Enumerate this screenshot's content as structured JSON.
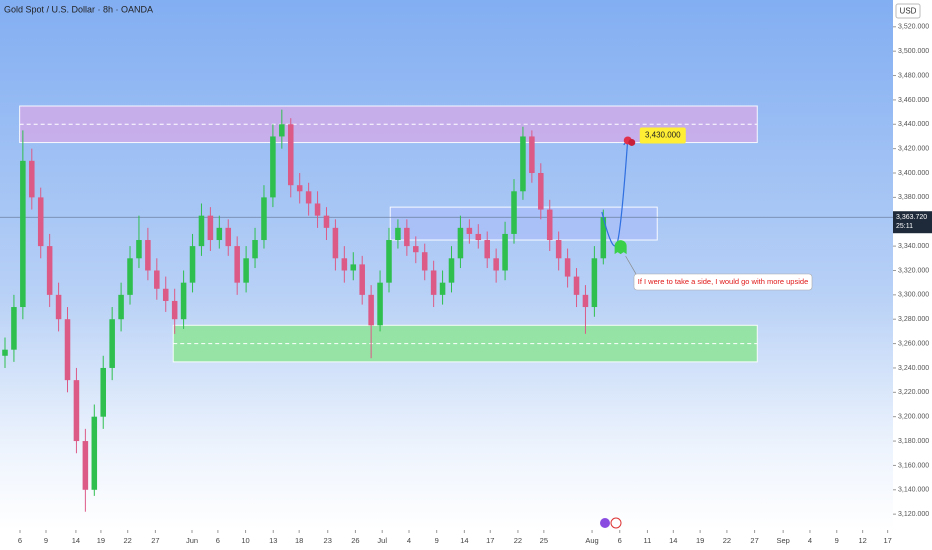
{
  "chart_data": {
    "type": "candlestick",
    "title": "Gold Spot / U.S. Dollar · 8h · OANDA",
    "currency": "USD",
    "up_color": "#2fbf4f",
    "down_color": "#dc5a86",
    "open": [
      3250,
      3255,
      3290,
      3410,
      3380,
      3340,
      3300,
      3280,
      3230,
      3180,
      3140,
      3200,
      3240,
      3280,
      3300,
      3330,
      3345,
      3320,
      3305,
      3295,
      3280,
      3310,
      3340,
      3365,
      3345,
      3355,
      3340,
      3310,
      3330,
      3345,
      3380,
      3430,
      3440,
      3390,
      3385,
      3375,
      3365,
      3355,
      3330,
      3320,
      3325,
      3300,
      3275,
      3310,
      3345,
      3355,
      3340,
      3335,
      3320,
      3300,
      3310,
      3330,
      3355,
      3350,
      3345,
      3330,
      3320,
      3350,
      3385,
      3430,
      3400,
      3370,
      3345,
      3330,
      3315,
      3300,
      3290,
      3330
    ],
    "high": [
      3265,
      3300,
      3435,
      3420,
      3388,
      3350,
      3310,
      3290,
      3240,
      3190,
      3210,
      3250,
      3290,
      3310,
      3340,
      3365,
      3355,
      3330,
      3315,
      3305,
      3320,
      3350,
      3375,
      3372,
      3365,
      3362,
      3348,
      3340,
      3355,
      3390,
      3440,
      3452,
      3445,
      3400,
      3392,
      3385,
      3372,
      3362,
      3340,
      3335,
      3332,
      3308,
      3320,
      3355,
      3362,
      3362,
      3348,
      3342,
      3328,
      3320,
      3340,
      3365,
      3362,
      3358,
      3352,
      3338,
      3360,
      3395,
      3438,
      3435,
      3408,
      3378,
      3352,
      3338,
      3322,
      3308,
      3340,
      3370
    ],
    "low": [
      3240,
      3245,
      3280,
      3370,
      3330,
      3290,
      3270,
      3220,
      3170,
      3122,
      3135,
      3190,
      3230,
      3270,
      3292,
      3322,
      3312,
      3296,
      3286,
      3268,
      3272,
      3302,
      3332,
      3336,
      3338,
      3332,
      3300,
      3302,
      3322,
      3338,
      3372,
      3420,
      3380,
      3375,
      3365,
      3355,
      3345,
      3320,
      3310,
      3312,
      3292,
      3248,
      3270,
      3302,
      3338,
      3332,
      3326,
      3312,
      3290,
      3292,
      3302,
      3322,
      3342,
      3338,
      3322,
      3310,
      3312,
      3342,
      3378,
      3392,
      3362,
      3336,
      3320,
      3306,
      3290,
      3268,
      3282,
      3325
    ],
    "close": [
      3255,
      3290,
      3410,
      3380,
      3340,
      3300,
      3280,
      3230,
      3180,
      3140,
      3200,
      3240,
      3280,
      3300,
      3330,
      3345,
      3320,
      3305,
      3295,
      3280,
      3310,
      3340,
      3365,
      3345,
      3355,
      3340,
      3310,
      3330,
      3345,
      3380,
      3430,
      3440,
      3390,
      3385,
      3375,
      3365,
      3355,
      3330,
      3320,
      3325,
      3300,
      3275,
      3310,
      3345,
      3355,
      3340,
      3335,
      3320,
      3300,
      3310,
      3330,
      3355,
      3350,
      3345,
      3330,
      3320,
      3350,
      3385,
      3430,
      3400,
      3370,
      3345,
      3330,
      3315,
      3300,
      3290,
      3330,
      3363.72
    ],
    "last_price": {
      "value": 3363.72,
      "label": "3,363.720"
    },
    "countdown": "25:11",
    "xlim": [
      0,
      100
    ],
    "xticks": [
      {
        "value": 2.24,
        "label": "6"
      },
      {
        "value": 5.15,
        "label": "9"
      },
      {
        "value": 8.5,
        "label": "14"
      },
      {
        "value": 11.3,
        "label": "19"
      },
      {
        "value": 14.3,
        "label": "22"
      },
      {
        "value": 17.4,
        "label": "27"
      },
      {
        "value": 21.5,
        "label": "Jun"
      },
      {
        "value": 24.4,
        "label": "6"
      },
      {
        "value": 27.5,
        "label": "10"
      },
      {
        "value": 30.6,
        "label": "13"
      },
      {
        "value": 33.5,
        "label": "18"
      },
      {
        "value": 36.7,
        "label": "23"
      },
      {
        "value": 39.8,
        "label": "26"
      },
      {
        "value": 42.8,
        "label": "Jul"
      },
      {
        "value": 45.8,
        "label": "4"
      },
      {
        "value": 48.9,
        "label": "9"
      },
      {
        "value": 52,
        "label": "14"
      },
      {
        "value": 54.9,
        "label": "17"
      },
      {
        "value": 58,
        "label": "22"
      },
      {
        "value": 60.9,
        "label": "25"
      },
      {
        "value": 66.3,
        "label": "Aug"
      },
      {
        "value": 69.4,
        "label": "6"
      },
      {
        "value": 72.5,
        "label": "11"
      },
      {
        "value": 75.4,
        "label": "14"
      },
      {
        "value": 78.4,
        "label": "19"
      },
      {
        "value": 81.4,
        "label": "22"
      },
      {
        "value": 84.5,
        "label": "27"
      },
      {
        "value": 87.7,
        "label": "Sep"
      },
      {
        "value": 90.7,
        "label": "4"
      },
      {
        "value": 93.7,
        "label": "9"
      },
      {
        "value": 96.6,
        "label": "12"
      },
      {
        "value": 99.4,
        "label": "17"
      }
    ],
    "ylim": [
      3107,
      3542
    ],
    "yticks": [
      {
        "value": 3120,
        "label": "3,120.000"
      },
      {
        "value": 3140,
        "label": "3,140.000"
      },
      {
        "value": 3160,
        "label": "3,160.000"
      },
      {
        "value": 3180,
        "label": "3,180.000"
      },
      {
        "value": 3200,
        "label": "3,200.000"
      },
      {
        "value": 3220,
        "label": "3,220.000"
      },
      {
        "value": 3240,
        "label": "3,240.000"
      },
      {
        "value": 3260,
        "label": "3,260.000"
      },
      {
        "value": 3280,
        "label": "3,280.000"
      },
      {
        "value": 3300,
        "label": "3,300.000"
      },
      {
        "value": 3320,
        "label": "3,320.000"
      },
      {
        "value": 3340,
        "label": "3,340.000"
      },
      {
        "value": 3360,
        "label": "3,360.000"
      },
      {
        "value": 3380,
        "label": "3,380.000"
      },
      {
        "value": 3400,
        "label": "3,400.000"
      },
      {
        "value": 3420,
        "label": "3,420.000"
      },
      {
        "value": 3440,
        "label": "3,440.000"
      },
      {
        "value": 3460,
        "label": "3,460.000"
      },
      {
        "value": 3480,
        "label": "3,480.000"
      },
      {
        "value": 3500,
        "label": "3,500.000"
      },
      {
        "value": 3520,
        "label": "3,520.000"
      }
    ],
    "zones": [
      {
        "xlim": [
          2.2,
          84.8
        ],
        "ylim": [
          3425,
          3455
        ],
        "mid": 3440,
        "color": "rgba(214,170,232,0.75)"
      },
      {
        "xlim": [
          43.7,
          73.6
        ],
        "ylim": [
          3345,
          3372
        ],
        "color": "rgba(170,190,250,0.7)"
      },
      {
        "xlim": [
          19.4,
          84.8
        ],
        "ylim": [
          3245,
          3275
        ],
        "mid": 3260,
        "color": "rgba(140,228,150,0.85)"
      }
    ],
    "projection": {
      "x": [
        67.4,
        69.2,
        70.3
      ],
      "y": [
        3368,
        3345,
        3428
      ],
      "color": "#2f6fe0"
    },
    "target": {
      "value": 3430,
      "label": "3,430.000"
    },
    "annotation": "If I were to take a side, I would go with more upside"
  }
}
